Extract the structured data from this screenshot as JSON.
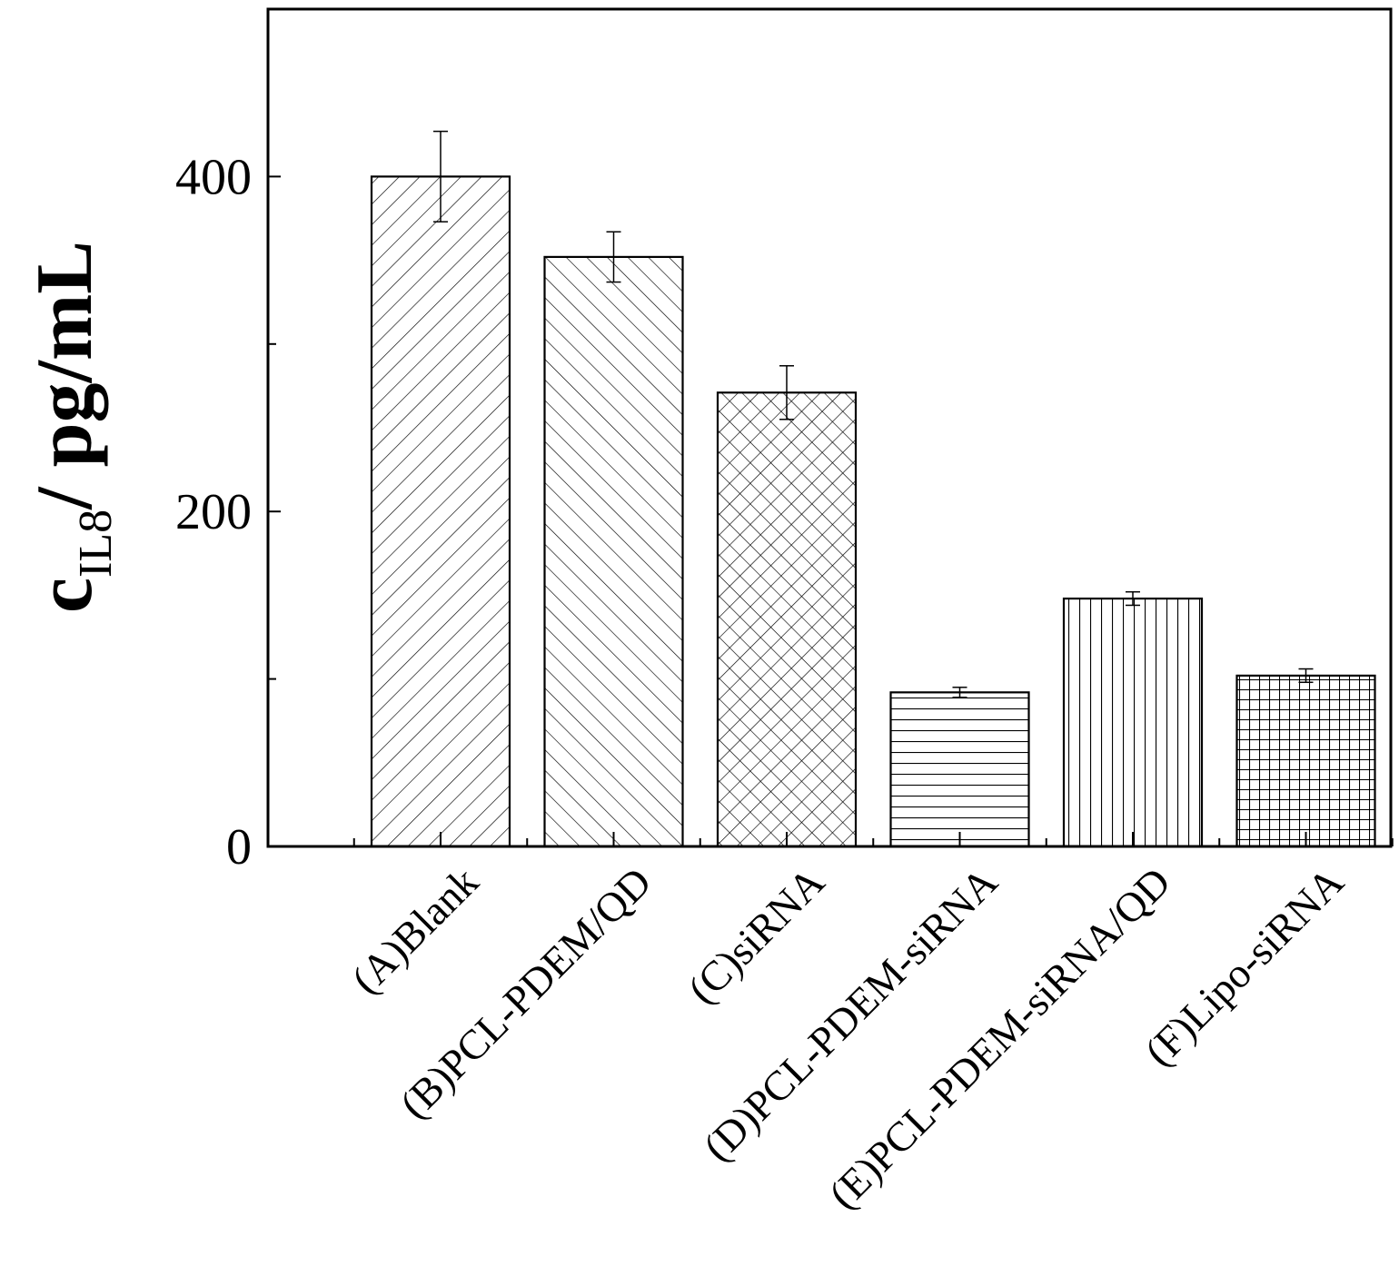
{
  "chart_data": {
    "type": "bar",
    "categories": [
      "(A)Blank",
      "(B)PCL-PDEM/QD",
      "(C)siRNA",
      "(D)PCL-PDEM-siRNA",
      "(E)PCL-PDEM-siRNA/QD",
      "(F)Lipo-siRNA"
    ],
    "values": [
      400,
      352,
      271,
      92,
      148,
      102
    ],
    "errors": [
      27,
      15,
      16,
      3,
      4,
      4
    ],
    "patterns": [
      "diag-fwd",
      "diag-back",
      "crosshatch-diag",
      "horizontal",
      "vertical",
      "grid"
    ],
    "ylabel": {
      "main": "c",
      "sub": "IL8",
      "unit": "/ pg/mL"
    },
    "ylim": [
      0,
      500
    ],
    "yticks": [
      0,
      200,
      400
    ],
    "ytick_labels": [
      "0",
      "200",
      "400"
    ],
    "grid": false,
    "legend": "none"
  }
}
